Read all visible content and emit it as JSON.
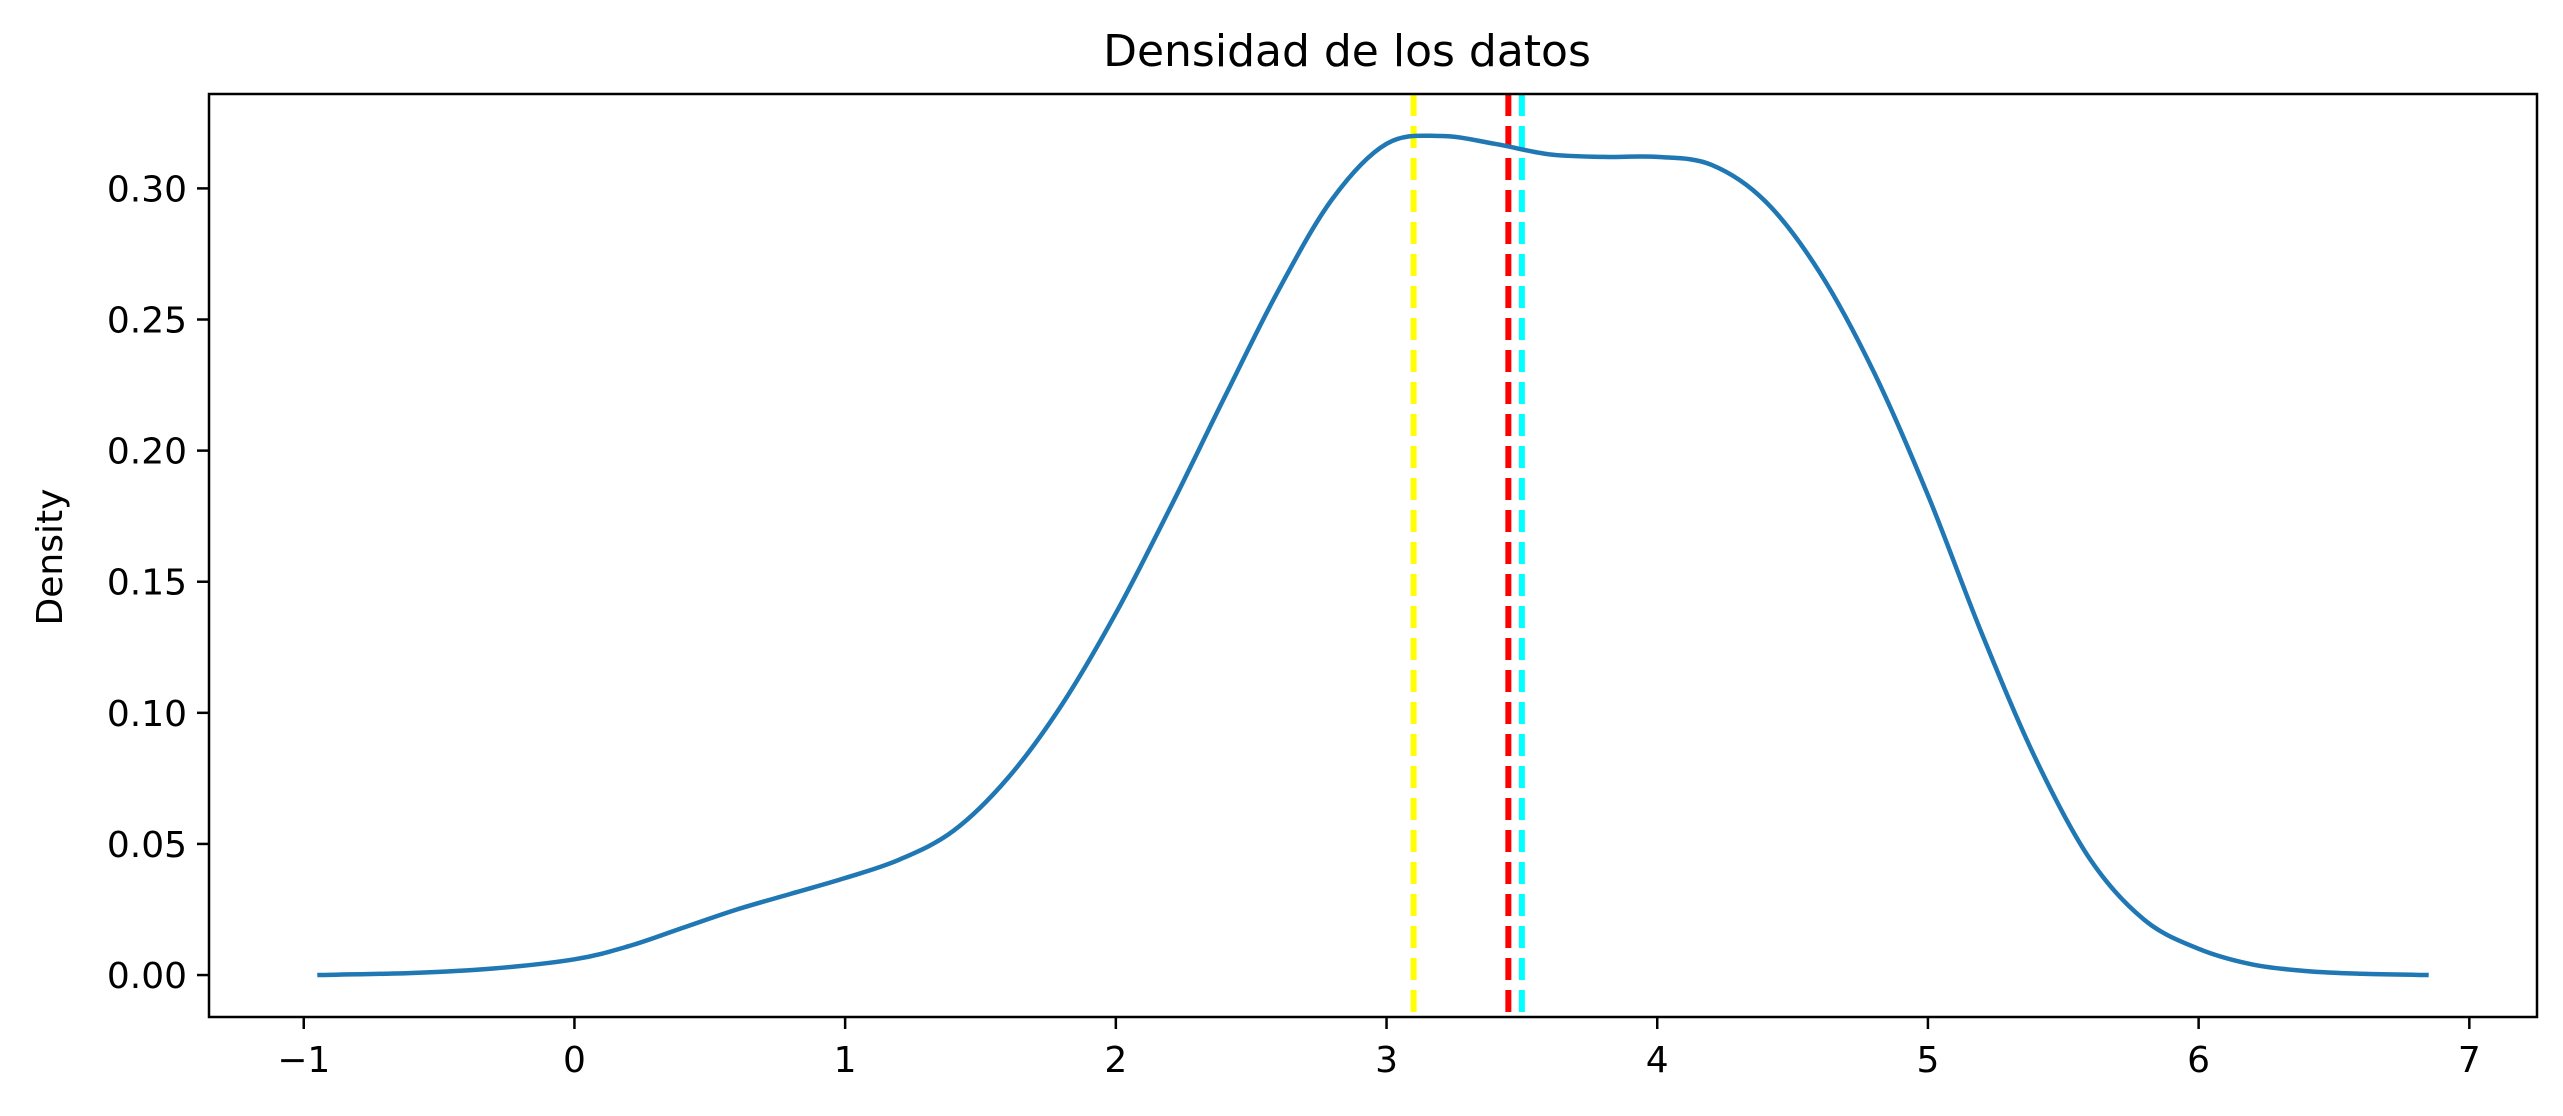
{
  "chart_data": {
    "type": "line",
    "title": "Densidad de los datos",
    "xlabel": "",
    "ylabel": "Density",
    "xlim": [
      -1.35,
      7.25
    ],
    "ylim": [
      -0.016,
      0.336
    ],
    "x_ticks": [
      -1,
      0,
      1,
      2,
      3,
      4,
      5,
      6,
      7
    ],
    "x_tick_labels": [
      "−1",
      "0",
      "1",
      "2",
      "3",
      "4",
      "5",
      "6",
      "7"
    ],
    "y_ticks": [
      0.0,
      0.05,
      0.1,
      0.15,
      0.2,
      0.25,
      0.3
    ],
    "y_tick_labels": [
      "0.00",
      "0.05",
      "0.10",
      "0.15",
      "0.20",
      "0.25",
      "0.30"
    ],
    "grid": false,
    "series": [
      {
        "color": "#1f77b4",
        "x": [
          -0.95,
          -0.6,
          -0.3,
          0.0,
          0.2,
          0.4,
          0.6,
          0.8,
          1.0,
          1.2,
          1.4,
          1.6,
          1.8,
          2.0,
          2.2,
          2.4,
          2.6,
          2.8,
          3.0,
          3.2,
          3.4,
          3.6,
          3.8,
          4.0,
          4.2,
          4.4,
          4.6,
          4.8,
          5.0,
          5.2,
          5.4,
          5.6,
          5.8,
          6.0,
          6.2,
          6.4,
          6.6,
          6.85
        ],
        "y": [
          0.0,
          0.0008,
          0.0025,
          0.006,
          0.011,
          0.018,
          0.025,
          0.031,
          0.037,
          0.044,
          0.055,
          0.075,
          0.103,
          0.138,
          0.178,
          0.22,
          0.261,
          0.296,
          0.317,
          0.32,
          0.317,
          0.313,
          0.312,
          0.312,
          0.309,
          0.295,
          0.268,
          0.23,
          0.183,
          0.13,
          0.082,
          0.044,
          0.021,
          0.01,
          0.004,
          0.0015,
          0.0005,
          0.0
        ]
      }
    ],
    "vlines": [
      {
        "x": 3.1,
        "color": "#ffff00",
        "style": "dashed"
      },
      {
        "x": 3.45,
        "color": "#ff0000",
        "style": "dashed"
      },
      {
        "x": 3.5,
        "color": "#00ffff",
        "style": "dashed"
      }
    ]
  }
}
